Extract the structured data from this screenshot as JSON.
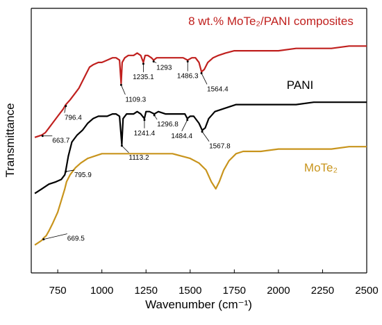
{
  "chart_data": {
    "type": "line",
    "title": "",
    "xlabel": "Wavenumber (cm⁻¹)",
    "ylabel": "Transmittance",
    "xlim": [
      600,
      2500
    ],
    "ylim": [
      0,
      1
    ],
    "xticks": [
      750,
      1000,
      1250,
      1500,
      1750,
      2000,
      2250,
      2500
    ],
    "grid": false,
    "legend": "series labels placed next to curves",
    "series": [
      {
        "name": "8 wt.% MoTe₂/PANI composites",
        "color": "#c0201e",
        "points": [
          [
            620,
            0.52
          ],
          [
            660,
            0.53
          ],
          [
            680,
            0.54
          ],
          [
            700,
            0.56
          ],
          [
            720,
            0.58
          ],
          [
            750,
            0.61
          ],
          [
            780,
            0.64
          ],
          [
            796,
            0.66
          ],
          [
            820,
            0.68
          ],
          [
            850,
            0.71
          ],
          [
            870,
            0.73
          ],
          [
            890,
            0.76
          ],
          [
            910,
            0.79
          ],
          [
            930,
            0.82
          ],
          [
            950,
            0.83
          ],
          [
            980,
            0.84
          ],
          [
            1000,
            0.84
          ],
          [
            1030,
            0.85
          ],
          [
            1060,
            0.86
          ],
          [
            1080,
            0.86
          ],
          [
            1100,
            0.85
          ],
          [
            1109,
            0.75
          ],
          [
            1115,
            0.84
          ],
          [
            1130,
            0.86
          ],
          [
            1150,
            0.87
          ],
          [
            1180,
            0.87
          ],
          [
            1200,
            0.88
          ],
          [
            1220,
            0.87
          ],
          [
            1235,
            0.84
          ],
          [
            1245,
            0.87
          ],
          [
            1260,
            0.87
          ],
          [
            1280,
            0.86
          ],
          [
            1293,
            0.85
          ],
          [
            1310,
            0.86
          ],
          [
            1340,
            0.86
          ],
          [
            1380,
            0.86
          ],
          [
            1420,
            0.86
          ],
          [
            1460,
            0.86
          ],
          [
            1486,
            0.85
          ],
          [
            1510,
            0.86
          ],
          [
            1530,
            0.86
          ],
          [
            1550,
            0.84
          ],
          [
            1564,
            0.8
          ],
          [
            1580,
            0.81
          ],
          [
            1600,
            0.84
          ],
          [
            1630,
            0.86
          ],
          [
            1660,
            0.87
          ],
          [
            1700,
            0.88
          ],
          [
            1750,
            0.89
          ],
          [
            1800,
            0.89
          ],
          [
            1900,
            0.89
          ],
          [
            2000,
            0.89
          ],
          [
            2100,
            0.9
          ],
          [
            2200,
            0.9
          ],
          [
            2300,
            0.9
          ],
          [
            2400,
            0.91
          ],
          [
            2500,
            0.91
          ]
        ]
      },
      {
        "name": "PANI",
        "color": "#000000",
        "points": [
          [
            620,
            0.28
          ],
          [
            660,
            0.3
          ],
          [
            700,
            0.32
          ],
          [
            740,
            0.33
          ],
          [
            770,
            0.34
          ],
          [
            790,
            0.36
          ],
          [
            796,
            0.38
          ],
          [
            810,
            0.44
          ],
          [
            830,
            0.5
          ],
          [
            860,
            0.53
          ],
          [
            890,
            0.55
          ],
          [
            920,
            0.58
          ],
          [
            950,
            0.6
          ],
          [
            980,
            0.61
          ],
          [
            1000,
            0.61
          ],
          [
            1030,
            0.61
          ],
          [
            1060,
            0.62
          ],
          [
            1080,
            0.62
          ],
          [
            1100,
            0.61
          ],
          [
            1113,
            0.49
          ],
          [
            1120,
            0.6
          ],
          [
            1140,
            0.62
          ],
          [
            1160,
            0.62
          ],
          [
            1180,
            0.62
          ],
          [
            1200,
            0.63
          ],
          [
            1220,
            0.62
          ],
          [
            1241,
            0.6
          ],
          [
            1250,
            0.63
          ],
          [
            1270,
            0.63
          ],
          [
            1297,
            0.62
          ],
          [
            1320,
            0.63
          ],
          [
            1360,
            0.62
          ],
          [
            1400,
            0.62
          ],
          [
            1440,
            0.62
          ],
          [
            1470,
            0.62
          ],
          [
            1484,
            0.6
          ],
          [
            1500,
            0.61
          ],
          [
            1520,
            0.61
          ],
          [
            1550,
            0.58
          ],
          [
            1568,
            0.55
          ],
          [
            1585,
            0.56
          ],
          [
            1605,
            0.6
          ],
          [
            1640,
            0.63
          ],
          [
            1680,
            0.64
          ],
          [
            1720,
            0.65
          ],
          [
            1760,
            0.66
          ],
          [
            1800,
            0.66
          ],
          [
            1900,
            0.66
          ],
          [
            2000,
            0.66
          ],
          [
            2100,
            0.66
          ],
          [
            2200,
            0.67
          ],
          [
            2300,
            0.67
          ],
          [
            2400,
            0.67
          ],
          [
            2500,
            0.67
          ]
        ]
      },
      {
        "name": "MoTe₂",
        "color": "#c8941c",
        "points": [
          [
            620,
            0.06
          ],
          [
            640,
            0.07
          ],
          [
            660,
            0.08
          ],
          [
            670,
            0.09
          ],
          [
            685,
            0.1
          ],
          [
            700,
            0.12
          ],
          [
            720,
            0.15
          ],
          [
            750,
            0.2
          ],
          [
            770,
            0.25
          ],
          [
            790,
            0.3
          ],
          [
            800,
            0.33
          ],
          [
            820,
            0.36
          ],
          [
            850,
            0.39
          ],
          [
            880,
            0.41
          ],
          [
            920,
            0.43
          ],
          [
            960,
            0.44
          ],
          [
            1000,
            0.45
          ],
          [
            1050,
            0.45
          ],
          [
            1100,
            0.45
          ],
          [
            1150,
            0.45
          ],
          [
            1200,
            0.45
          ],
          [
            1250,
            0.45
          ],
          [
            1300,
            0.45
          ],
          [
            1350,
            0.45
          ],
          [
            1400,
            0.45
          ],
          [
            1450,
            0.44
          ],
          [
            1500,
            0.43
          ],
          [
            1550,
            0.41
          ],
          [
            1590,
            0.38
          ],
          [
            1620,
            0.33
          ],
          [
            1645,
            0.3
          ],
          [
            1665,
            0.33
          ],
          [
            1690,
            0.38
          ],
          [
            1720,
            0.42
          ],
          [
            1760,
            0.45
          ],
          [
            1800,
            0.46
          ],
          [
            1900,
            0.46
          ],
          [
            2000,
            0.47
          ],
          [
            2100,
            0.47
          ],
          [
            2200,
            0.47
          ],
          [
            2300,
            0.47
          ],
          [
            2400,
            0.48
          ],
          [
            2500,
            0.48
          ]
        ]
      }
    ],
    "annotations": [
      {
        "text": "1109.3",
        "series": 0,
        "x": 1109
      },
      {
        "text": "1235.1",
        "series": 0,
        "x": 1235
      },
      {
        "text": "1293",
        "series": 0,
        "x": 1293
      },
      {
        "text": "1486.3",
        "series": 0,
        "x": 1486
      },
      {
        "text": "1564.4",
        "series": 0,
        "x": 1564
      },
      {
        "text": "796.4",
        "series": 0,
        "x": 796
      },
      {
        "text": "663.7",
        "series": 0,
        "x": 664
      },
      {
        "text": "1113.2",
        "series": 1,
        "x": 1113
      },
      {
        "text": "1241.4",
        "series": 1,
        "x": 1241
      },
      {
        "text": "1296.8",
        "series": 1,
        "x": 1297
      },
      {
        "text": "1484.4",
        "series": 1,
        "x": 1484
      },
      {
        "text": "1567.8",
        "series": 1,
        "x": 1568
      },
      {
        "text": "795.9",
        "series": 1,
        "x": 796
      },
      {
        "text": "669.5",
        "series": 2,
        "x": 670
      }
    ]
  }
}
